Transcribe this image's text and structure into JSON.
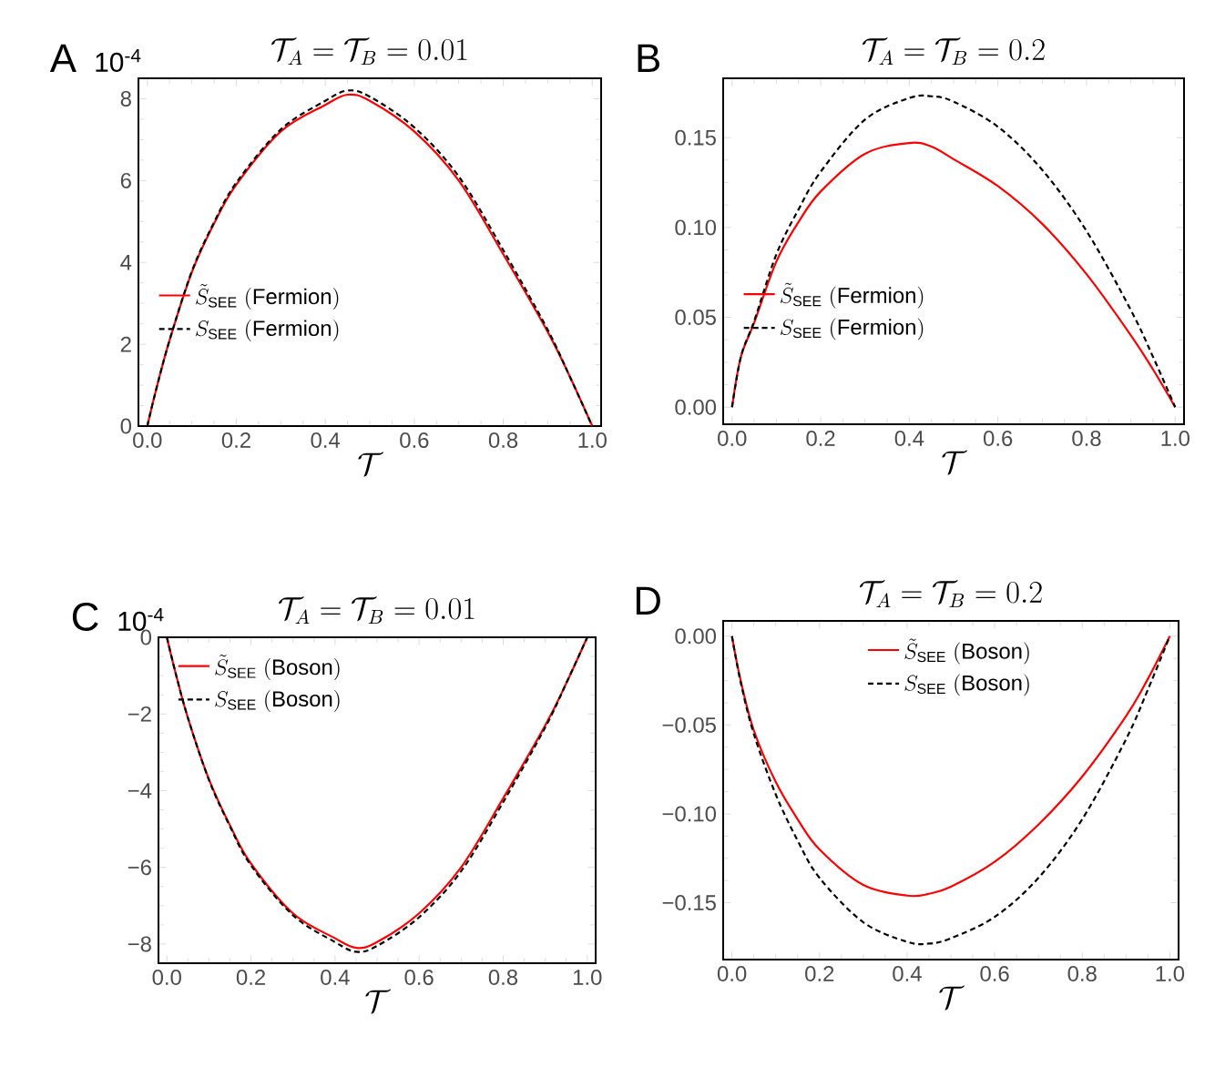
{
  "chart_data": [
    {
      "type": "line",
      "title": "\\mathcal{T}_A = \\mathcal{T}_B = 0.01",
      "xlabel": "\\mathcal{T}",
      "annotations": [
        "A",
        "10$^{-4}$"
      ],
      "legend": "left",
      "marker": "none",
      "x": [
        0,
        0.02,
        0.05,
        0.1,
        0.15,
        0.2,
        0.3,
        0.4,
        0.45,
        0.5,
        0.6,
        0.7,
        0.8,
        0.9,
        0.95,
        1
      ],
      "xlim": [
        -0.02,
        1.02
      ],
      "ylim": [
        0,
        8.5
      ],
      "xticks": [
        {
          "value": 0,
          "label": "0.0"
        },
        {
          "value": 0.2,
          "label": "0.2"
        },
        {
          "value": 0.4,
          "label": "0.4"
        },
        {
          "value": 0.6,
          "label": "0.6"
        },
        {
          "value": 0.8,
          "label": "0.8"
        },
        {
          "value": 1,
          "label": "1.0"
        }
      ],
      "yticks": [
        0,
        2,
        4,
        6,
        8
      ],
      "series": [
        {
          "name": "\\tilde{S}_{\\mathrm{SEE}}\\ \\mathrm{(Fermion)}",
          "color": "#ff0000",
          "line_style": "solid",
          "values": [
            0,
            0.9,
            2.1,
            3.76,
            4.95,
            5.9,
            7.2,
            7.85,
            8.1,
            7.95,
            7.2,
            6.0,
            4.2,
            2.3,
            1.2,
            0
          ]
        },
        {
          "name": "S_{\\mathrm{SEE}}\\ \\mathrm{(Fermion)}",
          "color": "#000000",
          "line_style": "dashed",
          "values": [
            0,
            0.9,
            2.1,
            3.78,
            4.98,
            5.95,
            7.25,
            7.95,
            8.2,
            8.05,
            7.3,
            6.1,
            4.3,
            2.35,
            1.2,
            0
          ]
        }
      ]
    },
    {
      "type": "line",
      "title": "\\mathcal{T}_A = \\mathcal{T}_B = 0.2",
      "xlabel": "\\mathcal{T}",
      "annotations": [
        "B"
      ],
      "legend": "left",
      "marker": "none",
      "x": [
        0,
        0.02,
        0.05,
        0.1,
        0.15,
        0.2,
        0.3,
        0.4,
        0.45,
        0.5,
        0.6,
        0.7,
        0.8,
        0.9,
        0.95,
        1
      ],
      "xlim": [
        -0.02,
        1.02
      ],
      "ylim": [
        -0.0095,
        0.183
      ],
      "xticks": [
        {
          "value": 0,
          "label": "0.0"
        },
        {
          "value": 0.2,
          "label": "0.2"
        },
        {
          "value": 0.4,
          "label": "0.4"
        },
        {
          "value": 0.6,
          "label": "0.6"
        },
        {
          "value": 0.8,
          "label": "0.8"
        },
        {
          "value": 1,
          "label": "1.0"
        }
      ],
      "yticks": [
        {
          "value": 0,
          "label": "0.00"
        },
        {
          "value": 0.05,
          "label": "0.05"
        },
        {
          "value": 0.1,
          "label": "0.10"
        },
        {
          "value": 0.15,
          "label": "0.15"
        }
      ],
      "series": [
        {
          "name": "\\tilde{S}_{\\mathrm{SEE}}\\ \\mathrm{(Fermion)}",
          "color": "#ff0000",
          "line_style": "solid",
          "values": [
            0,
            0.028,
            0.047,
            0.081,
            0.103,
            0.12,
            0.141,
            0.147,
            0.145,
            0.138,
            0.123,
            0.102,
            0.074,
            0.04,
            0.021,
            0
          ]
        },
        {
          "name": "S_{\\mathrm{SEE}}\\ \\mathrm{(Fermion)}",
          "color": "#000000",
          "line_style": "dashed",
          "values": [
            0,
            0.028,
            0.048,
            0.085,
            0.11,
            0.131,
            0.16,
            0.172,
            0.173,
            0.17,
            0.156,
            0.132,
            0.098,
            0.054,
            0.028,
            0
          ]
        }
      ]
    },
    {
      "type": "line",
      "title": "\\mathcal{T}_A = \\mathcal{T}_B = 0.01",
      "xlabel": "\\mathcal{T}",
      "annotations": [
        "C",
        "10$^{-4}$"
      ],
      "legend": "top left",
      "marker": "none",
      "x": [
        0,
        0.02,
        0.05,
        0.1,
        0.15,
        0.2,
        0.3,
        0.4,
        0.45,
        0.5,
        0.6,
        0.7,
        0.8,
        0.9,
        0.95,
        1
      ],
      "xlim": [
        -0.02,
        1.02
      ],
      "ylim": [
        -8.5,
        0
      ],
      "xticks": [
        {
          "value": 0,
          "label": "0.0"
        },
        {
          "value": 0.2,
          "label": "0.2"
        },
        {
          "value": 0.4,
          "label": "0.4"
        },
        {
          "value": 0.6,
          "label": "0.6"
        },
        {
          "value": 0.8,
          "label": "0.8"
        },
        {
          "value": 1,
          "label": "1.0"
        }
      ],
      "yticks": [
        {
          "value": 0,
          "label": "0"
        },
        {
          "value": -2,
          "label": "−2"
        },
        {
          "value": -4,
          "label": "−4"
        },
        {
          "value": -6,
          "label": "−6"
        },
        {
          "value": -8,
          "label": "−8"
        }
      ],
      "series": [
        {
          "name": "\\tilde{S}_{\\mathrm{SEE}}\\ \\mathrm{(Boson)}",
          "color": "#ff0000",
          "line_style": "solid",
          "values": [
            0,
            -0.9,
            -2.1,
            -3.7,
            -4.9,
            -5.9,
            -7.2,
            -7.85,
            -8.1,
            -7.95,
            -7.2,
            -6.0,
            -4.2,
            -2.3,
            -1.2,
            0
          ]
        },
        {
          "name": "S_{\\mathrm{SEE}}\\ \\mathrm{(Boson)}",
          "color": "#000000",
          "line_style": "dashed",
          "values": [
            0,
            -0.9,
            -2.1,
            -3.72,
            -4.93,
            -5.95,
            -7.25,
            -7.95,
            -8.2,
            -8.05,
            -7.3,
            -6.1,
            -4.3,
            -2.35,
            -1.2,
            0
          ]
        }
      ]
    },
    {
      "type": "line",
      "title": "\\mathcal{T}_A = \\mathcal{T}_B = 0.2",
      "xlabel": "\\mathcal{T}",
      "annotations": [
        "D"
      ],
      "legend": "top",
      "marker": "none",
      "x": [
        0,
        0.02,
        0.05,
        0.1,
        0.15,
        0.2,
        0.3,
        0.4,
        0.45,
        0.5,
        0.6,
        0.7,
        0.8,
        0.9,
        0.95,
        1
      ],
      "xlim": [
        -0.02,
        1.02
      ],
      "ylim": [
        -0.182,
        0.0086
      ],
      "xticks": [
        {
          "value": 0,
          "label": "0.0"
        },
        {
          "value": 0.2,
          "label": "0.2"
        },
        {
          "value": 0.4,
          "label": "0.4"
        },
        {
          "value": 0.6,
          "label": "0.6"
        },
        {
          "value": 0.8,
          "label": "0.8"
        },
        {
          "value": 1,
          "label": "1.0"
        }
      ],
      "yticks": [
        {
          "value": 0,
          "label": "0.00"
        },
        {
          "value": -0.05,
          "label": "−0.05"
        },
        {
          "value": -0.1,
          "label": "−0.10"
        },
        {
          "value": -0.15,
          "label": "−0.15"
        }
      ],
      "series": [
        {
          "name": "\\tilde{S}_{\\mathrm{SEE}}\\ \\mathrm{(Boson)}",
          "color": "#ff0000",
          "line_style": "solid",
          "values": [
            0,
            -0.025,
            -0.053,
            -0.082,
            -0.103,
            -0.12,
            -0.14,
            -0.146,
            -0.145,
            -0.141,
            -0.127,
            -0.106,
            -0.079,
            -0.045,
            -0.024,
            0
          ]
        },
        {
          "name": "S_{\\mathrm{SEE}}\\ \\mathrm{(Boson)}",
          "color": "#000000",
          "line_style": "dashed",
          "values": [
            0,
            -0.026,
            -0.055,
            -0.089,
            -0.115,
            -0.136,
            -0.161,
            -0.172,
            -0.173,
            -0.17,
            -0.158,
            -0.136,
            -0.103,
            -0.058,
            -0.03,
            0
          ]
        }
      ]
    }
  ]
}
